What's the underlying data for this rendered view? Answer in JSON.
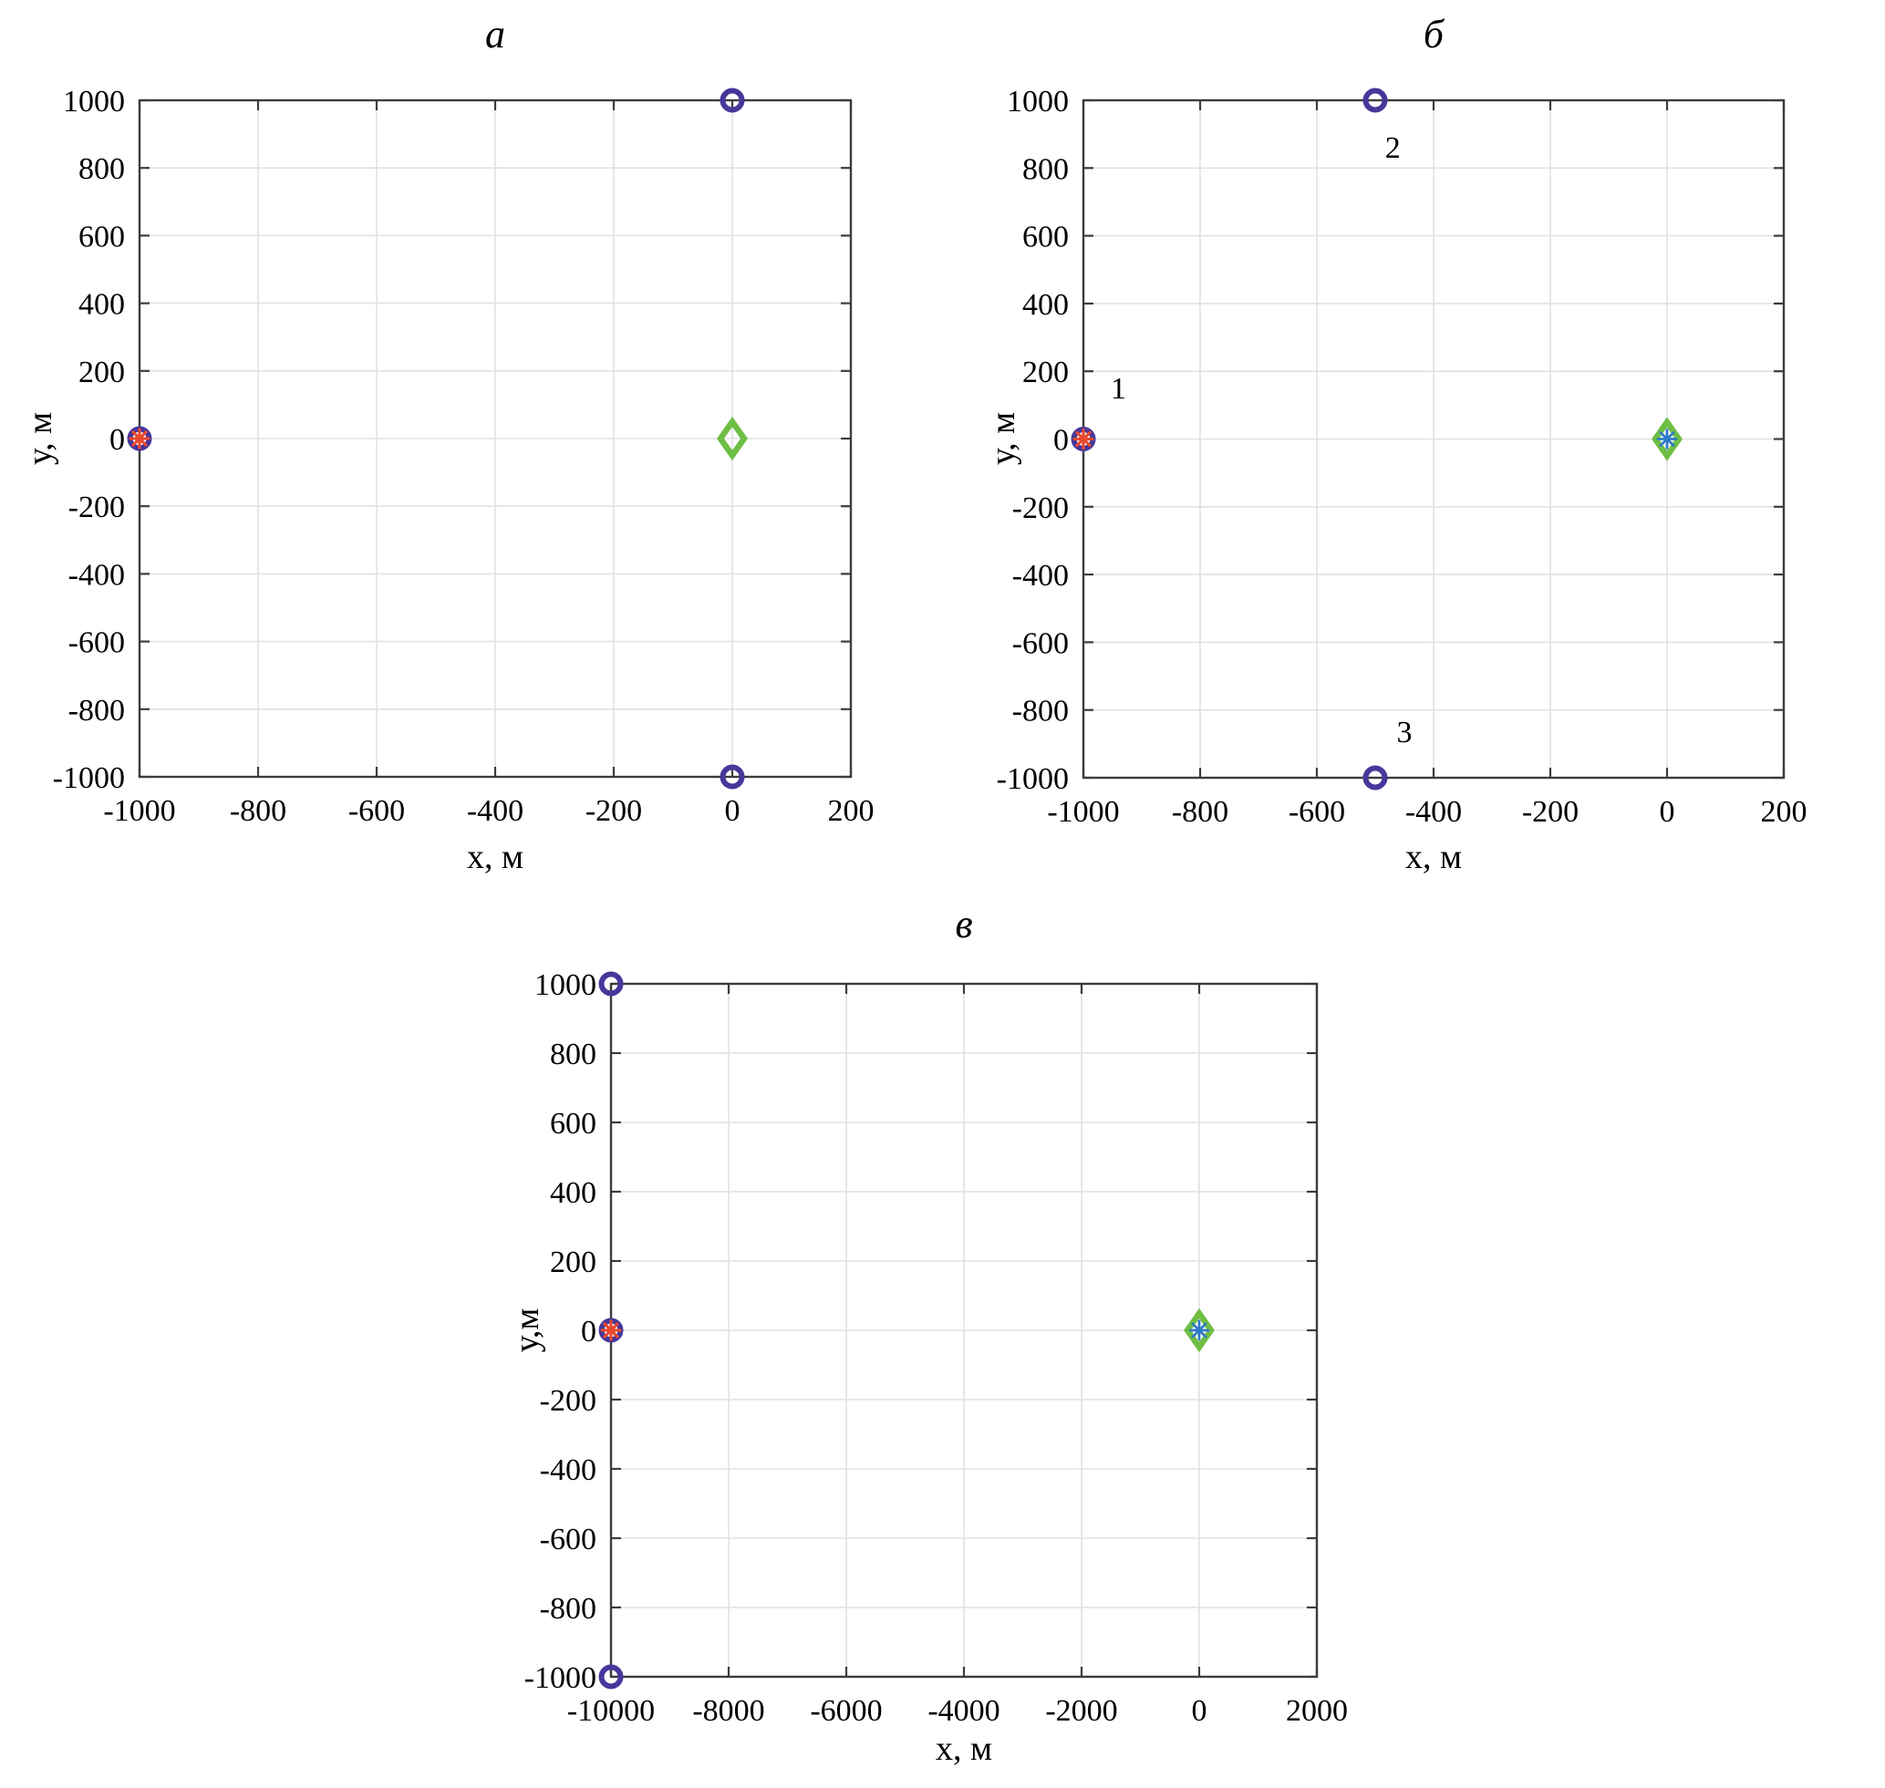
{
  "figure": {
    "background": "#ffffff",
    "description_note": ""
  },
  "colors": {
    "grid": "#e1e1e1",
    "axis": "#3c3c3c",
    "text": "#000000",
    "circle_marker": "#47379B",
    "red_asterisk": "#E8492F",
    "green_diamond": "#6FBE44",
    "blue_asterisk": "#2E79C6"
  },
  "chart_data": [
    {
      "panel": "a",
      "type": "scatter",
      "title": "а",
      "xlabel": "х, м",
      "ylabel": "у, м",
      "xlim": [
        -1000,
        200
      ],
      "ylim": [
        -1000,
        1000
      ],
      "xticks": [
        -1000,
        -800,
        -600,
        -400,
        -200,
        0,
        200
      ],
      "yticks": [
        -1000,
        -800,
        -600,
        -400,
        -200,
        0,
        200,
        400,
        600,
        800,
        1000
      ],
      "grid": true,
      "legend": "none",
      "series": [
        {
          "name": "circle-markers",
          "marker": "circle",
          "color": "#47379B",
          "points": [
            [
              0,
              1000
            ],
            [
              -1000,
              0
            ],
            [
              0,
              -1000
            ]
          ]
        },
        {
          "name": "red-asterisk",
          "marker": "asterisk",
          "color": "#E8492F",
          "points": [
            [
              -1000,
              0
            ]
          ]
        },
        {
          "name": "green-diamond",
          "marker": "diamond",
          "color": "#6FBE44",
          "points": [
            [
              0,
              0
            ]
          ]
        }
      ],
      "annotations": []
    },
    {
      "panel": "b",
      "type": "scatter",
      "title": "б",
      "xlabel": "х, м",
      "ylabel": "у, м",
      "xlim": [
        -1000,
        200
      ],
      "ylim": [
        -1000,
        1000
      ],
      "xticks": [
        -1000,
        -800,
        -600,
        -400,
        -200,
        0,
        200
      ],
      "yticks": [
        -1000,
        -800,
        -600,
        -400,
        -200,
        0,
        200,
        400,
        600,
        800,
        1000
      ],
      "grid": true,
      "legend": "none",
      "series": [
        {
          "name": "circle-markers",
          "marker": "circle",
          "color": "#47379B",
          "points": [
            [
              -500,
              1000
            ],
            [
              -1000,
              0
            ],
            [
              -500,
              -1000
            ]
          ]
        },
        {
          "name": "red-asterisk",
          "marker": "asterisk",
          "color": "#E8492F",
          "points": [
            [
              -1000,
              0
            ]
          ]
        },
        {
          "name": "green-diamond",
          "marker": "diamond",
          "color": "#6FBE44",
          "points": [
            [
              0,
              0
            ]
          ]
        },
        {
          "name": "blue-asterisk",
          "marker": "asterisk",
          "color": "#2E79C6",
          "points": [
            [
              0,
              0
            ]
          ]
        }
      ],
      "annotations": [
        {
          "text": "1",
          "x": -940,
          "y": 120
        },
        {
          "text": "2",
          "x": -470,
          "y": 830
        },
        {
          "text": "3",
          "x": -450,
          "y": -895
        }
      ]
    },
    {
      "panel": "v",
      "type": "scatter",
      "title": "в",
      "xlabel": "х, м",
      "ylabel": "у,м",
      "xlim": [
        -10000,
        2000
      ],
      "ylim": [
        -1000,
        1000
      ],
      "xticks": [
        -10000,
        -8000,
        -6000,
        -4000,
        -2000,
        0,
        2000
      ],
      "yticks": [
        -1000,
        -800,
        -600,
        -400,
        -200,
        0,
        200,
        400,
        600,
        800,
        1000
      ],
      "grid": true,
      "legend": "none",
      "series": [
        {
          "name": "circle-markers",
          "marker": "circle",
          "color": "#47379B",
          "points": [
            [
              -10000,
              1000
            ],
            [
              -10000,
              0
            ],
            [
              -10000,
              -1000
            ]
          ]
        },
        {
          "name": "red-asterisk",
          "marker": "asterisk",
          "color": "#E8492F",
          "points": [
            [
              -10000,
              0
            ]
          ]
        },
        {
          "name": "green-diamond",
          "marker": "diamond",
          "color": "#6FBE44",
          "points": [
            [
              0,
              0
            ]
          ]
        },
        {
          "name": "blue-asterisk",
          "marker": "asterisk",
          "color": "#2E79C6",
          "points": [
            [
              0,
              0
            ]
          ]
        }
      ],
      "annotations": []
    }
  ]
}
